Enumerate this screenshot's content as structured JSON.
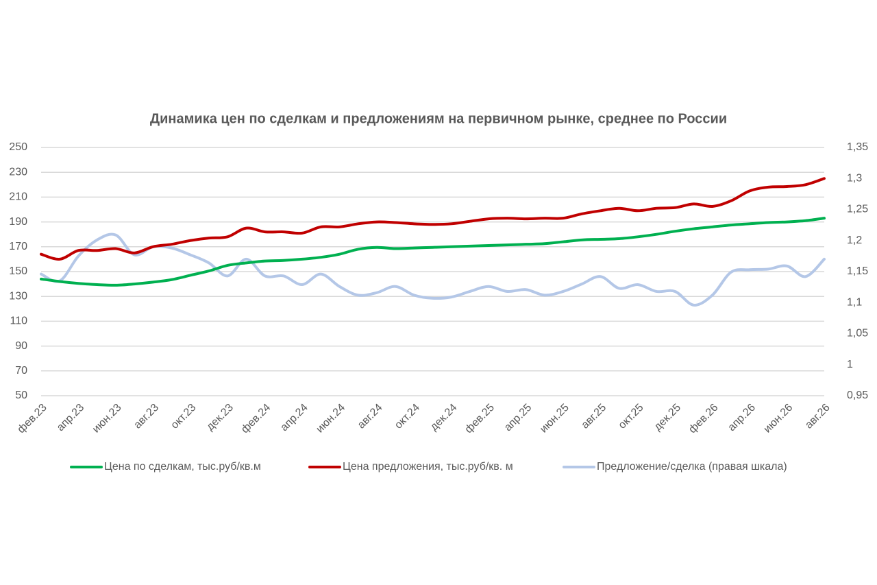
{
  "chart_data": {
    "type": "line",
    "title": "Динамика цен по сделкам и предложениям на первичном рынке, среднее по России",
    "categories": [
      "фев.23",
      null,
      "апр.23",
      null,
      "июн.23",
      null,
      "авг.23",
      null,
      "окт.23",
      null,
      "дек.23",
      null,
      "фев.24",
      null,
      "апр.24",
      null,
      "июн.24",
      null,
      "авг.24",
      null,
      "окт.24",
      null,
      "дек.24",
      null,
      "фев.25",
      null,
      "апр.25",
      null,
      "июн.25",
      null,
      "авг.25",
      null,
      "окт.25",
      null,
      "дек.25",
      null,
      "фев.26",
      null,
      "апр.26",
      null,
      "июн.26",
      null,
      "авг.26"
    ],
    "series": [
      {
        "name": "Цена по сделкам, тыс.руб/кв.м",
        "color": "#00b050",
        "values": [
          144,
          142,
          140.5,
          139.5,
          139,
          140,
          141.5,
          143.5,
          147,
          150.5,
          155,
          157,
          158.5,
          159,
          160,
          161.5,
          164,
          168,
          169.5,
          168.5,
          169,
          169.5,
          170,
          170.5,
          171,
          171.5,
          172,
          172.5,
          174,
          175.5,
          176,
          176.5,
          178,
          180,
          182.5,
          184.5,
          186,
          187.5,
          188.5,
          189.5,
          190,
          191,
          193
        ]
      },
      {
        "name": "Цена предложения, тыс.руб/кв. м",
        "color": "#c00000",
        "values": [
          164,
          160,
          167,
          167,
          168.5,
          165,
          170,
          172,
          175,
          177,
          178,
          185,
          182,
          182,
          181,
          186,
          186,
          188.5,
          190,
          189.5,
          188.5,
          188,
          188.5,
          190.5,
          192.5,
          193,
          192.5,
          193,
          193,
          196.5,
          199,
          201,
          199,
          201,
          201.5,
          204.5,
          202.5,
          207,
          215,
          218,
          218.5,
          220,
          225
        ]
      },
      {
        "name": "Предложение/сделка (правая шкала)",
        "color": "#b4c7e7",
        "axis": "y2",
        "values": [
          1.146,
          1.135,
          1.175,
          1.201,
          1.209,
          1.177,
          1.19,
          1.188,
          1.177,
          1.164,
          1.143,
          1.17,
          1.143,
          1.143,
          1.129,
          1.146,
          1.126,
          1.112,
          1.116,
          1.126,
          1.112,
          1.107,
          1.109,
          1.118,
          1.126,
          1.118,
          1.121,
          1.112,
          1.118,
          1.13,
          1.142,
          1.123,
          1.129,
          1.118,
          1.118,
          1.096,
          1.112,
          1.149,
          1.153,
          1.154,
          1.159,
          1.142,
          1.17
        ]
      }
    ],
    "ylim": [
      50,
      250
    ],
    "yticks": [
      50,
      70,
      90,
      110,
      130,
      150,
      170,
      190,
      210,
      230,
      250
    ],
    "y2lim": [
      0.95,
      1.35
    ],
    "y2ticks": [
      {
        "value": 0.95,
        "label": "0,95"
      },
      1,
      {
        "value": 1.05,
        "label": "1,05"
      },
      {
        "value": 1.1,
        "label": "1,1"
      },
      {
        "value": 1.15,
        "label": "1,15"
      },
      {
        "value": 1.2,
        "label": "1,2"
      },
      {
        "value": 1.25,
        "label": "1,25"
      },
      {
        "value": 1.3,
        "label": "1,3"
      },
      {
        "value": 1.35,
        "label": "1,35"
      }
    ],
    "grid": true,
    "legend": "bottom"
  }
}
